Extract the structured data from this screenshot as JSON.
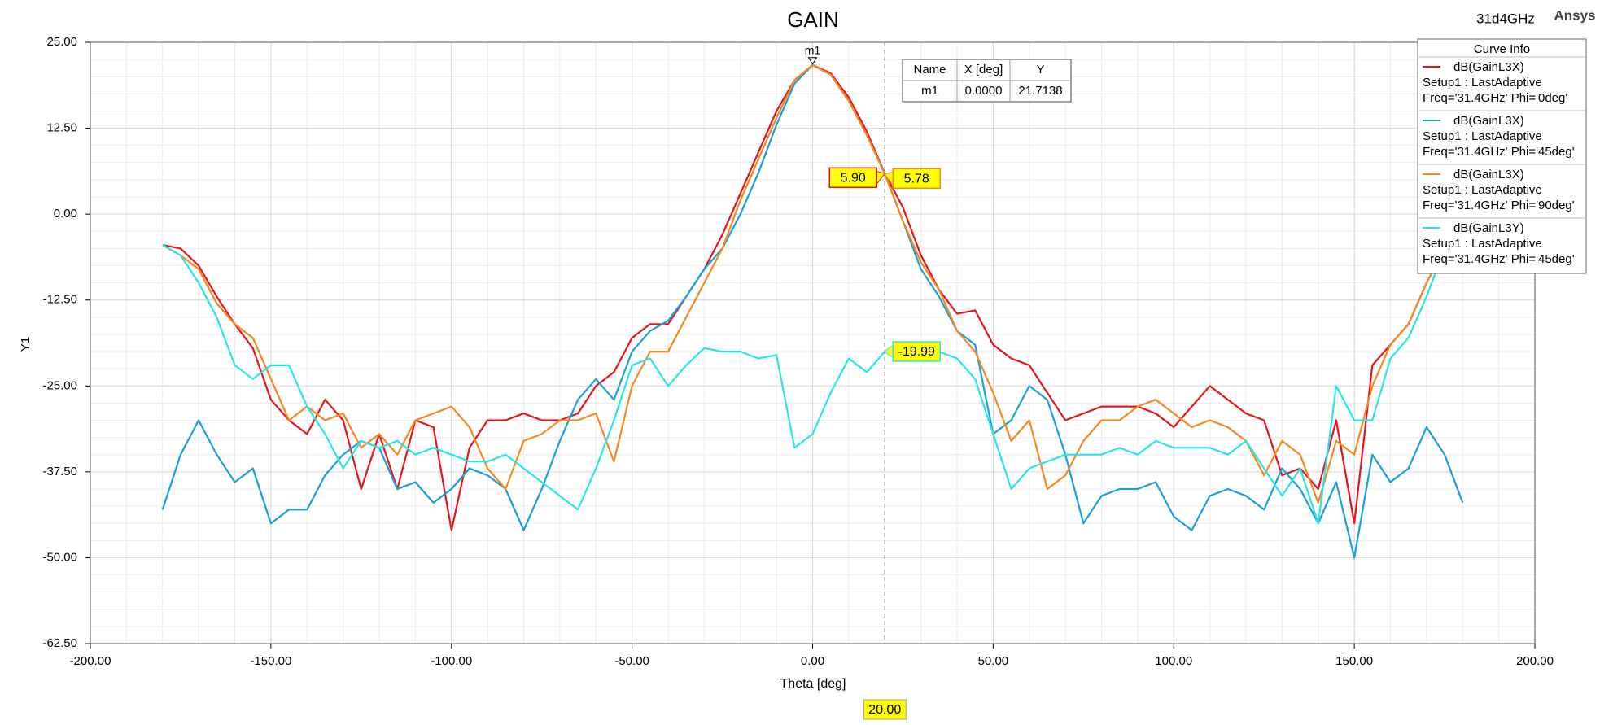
{
  "chart_data": {
    "type": "line",
    "title": "GAIN",
    "subtitle": "31d4GHz",
    "brand": "Ansys",
    "y_label": "Y1",
    "x_label": "Theta [deg]",
    "xlim": [
      -200,
      200
    ],
    "ylim": [
      -62.5,
      25
    ],
    "xticks": [
      {
        "value": -200,
        "label": "-200.00"
      },
      {
        "value": -150,
        "label": "-150.00"
      },
      {
        "value": -100,
        "label": "-100.00"
      },
      {
        "value": -50,
        "label": "-50.00"
      },
      {
        "value": 0,
        "label": "0.00"
      },
      {
        "value": 50,
        "label": "50.00"
      },
      {
        "value": 100,
        "label": "100.00"
      },
      {
        "value": 150,
        "label": "150.00"
      },
      {
        "value": 200,
        "label": "200.00"
      }
    ],
    "yticks": [
      {
        "value": 25,
        "label": "25.00"
      },
      {
        "value": 12.5,
        "label": "12.50"
      },
      {
        "value": 0,
        "label": "0.00"
      },
      {
        "value": -12.5,
        "label": "-12.50"
      },
      {
        "value": -25,
        "label": "-25.00"
      },
      {
        "value": -37.5,
        "label": "-37.50"
      },
      {
        "value": -50,
        "label": "-50.00"
      },
      {
        "value": -62.5,
        "label": "-62.50"
      }
    ],
    "grid": true,
    "minor_divisions": 5,
    "legend_title": "Curve Info",
    "x": [
      -180,
      -175,
      -170,
      -165,
      -160,
      -155,
      -150,
      -145,
      -140,
      -135,
      -130,
      -125,
      -120,
      -115,
      -110,
      -105,
      -100,
      -95,
      -90,
      -85,
      -80,
      -75,
      -70,
      -65,
      -60,
      -55,
      -50,
      -45,
      -40,
      -35,
      -30,
      -25,
      -20,
      -15,
      -10,
      -5,
      0,
      5,
      10,
      15,
      20,
      25,
      30,
      35,
      40,
      45,
      50,
      55,
      60,
      65,
      70,
      75,
      80,
      85,
      90,
      95,
      100,
      105,
      110,
      115,
      120,
      125,
      130,
      135,
      140,
      145,
      150,
      155,
      160,
      165,
      170,
      175,
      180
    ],
    "series": [
      {
        "name": "dB(GainL3X)",
        "setup": "Setup1 : LastAdaptive",
        "freq": "Freq='31.4GHz' Phi='0deg'",
        "color": "#e8141c",
        "values": [
          -4.5,
          -5,
          -7.5,
          -12,
          -16,
          -19.5,
          -27,
          -30,
          -32,
          -27,
          -30,
          -40,
          -32,
          -40,
          -30,
          -31,
          -46,
          -34,
          -30,
          -30,
          -29,
          -30,
          -30,
          -29,
          -25,
          -23,
          -18,
          -16,
          -16,
          -12,
          -8,
          -3,
          3,
          9,
          15,
          19.5,
          21.7,
          20.5,
          17,
          12,
          5.9,
          1,
          -6,
          -11,
          -14.5,
          -14,
          -19,
          -21,
          -22,
          -26,
          -30,
          -29,
          -28,
          -28,
          -28,
          -29,
          -31,
          -28,
          -25,
          -27,
          -29,
          -30,
          -38,
          -37,
          -40,
          -30,
          -45,
          -22,
          -19,
          -16,
          -10,
          -5,
          -3
        ]
      },
      {
        "name": "dB(GainL3X)",
        "setup": "Setup1 : LastAdaptive",
        "freq": "Freq='31.4GHz' Phi='45deg'",
        "color": "#1a9fdb",
        "values": [
          -43,
          -35,
          -30,
          -35,
          -39,
          -37,
          -45,
          -43,
          -43,
          -38,
          -35,
          -33,
          -34,
          -40,
          -39,
          -42,
          -40,
          -37,
          -38,
          -40,
          -46,
          -40,
          -33,
          -27,
          -24,
          -27,
          -20,
          -17,
          -15.5,
          -12,
          -8,
          -5,
          0,
          6,
          13,
          19,
          21.7,
          20.3,
          16.5,
          11.5,
          5.9,
          -1,
          -8,
          -12,
          -17,
          -19,
          -32,
          -30,
          -25,
          -27,
          -35,
          -45,
          -41,
          -40,
          -40,
          -39,
          -44,
          -46,
          -41,
          -40,
          -41,
          -43,
          -37,
          -40,
          -45,
          -39,
          -50,
          -35,
          -39,
          -37,
          -31,
          -35,
          -42
        ]
      },
      {
        "name": "dB(GainL3X)",
        "setup": "Setup1 : LastAdaptive",
        "freq": "Freq='31.4GHz' Phi='90deg'",
        "color": "#f5891f",
        "values": [
          -4.5,
          -6,
          -8,
          -13,
          -16,
          -18,
          -24,
          -30,
          -28,
          -30,
          -29,
          -34,
          -32,
          -35,
          -30,
          -29,
          -28,
          -31,
          -37,
          -40,
          -33,
          -32,
          -30,
          -30,
          -29,
          -36,
          -25,
          -20,
          -20,
          -15,
          -10,
          -5,
          2,
          8,
          14,
          19.5,
          21.7,
          20.3,
          16.5,
          11.5,
          5.78,
          -1,
          -7,
          -11,
          -17,
          -20,
          -26,
          -33,
          -30,
          -40,
          -38,
          -33,
          -30,
          -30,
          -28,
          -27,
          -29,
          -31,
          -30,
          -31,
          -33,
          -38,
          -33,
          -35,
          -42,
          -33,
          -35,
          -25,
          -19,
          -16,
          -10,
          -5,
          -3
        ]
      },
      {
        "name": "dB(GainL3Y)",
        "setup": "Setup1 : LastAdaptive",
        "freq": "Freq='31.4GHz' Phi='45deg'",
        "color": "#29e6e6",
        "values": [
          -4.5,
          -6,
          -10,
          -15,
          -22,
          -24,
          -22,
          -22,
          -28,
          -32,
          -37,
          -33,
          -34,
          -33,
          -35,
          -34,
          -35,
          -36,
          -36,
          -35,
          -37,
          -39,
          -41,
          -43,
          -37,
          -30,
          -22,
          -21,
          -25,
          -22,
          -19.5,
          -20,
          -20,
          -21,
          -20.5,
          -34,
          -32,
          -26,
          -21,
          -23,
          -19.99,
          -19.5,
          -21,
          -20,
          -21,
          -24,
          -32,
          -40,
          -37,
          -36,
          -35,
          -35,
          -35,
          -34,
          -35,
          -33,
          -34,
          -34,
          -34,
          -35,
          -33,
          -37,
          -41,
          -37,
          -45,
          -25,
          -30,
          -30,
          -21,
          -18,
          -12,
          -5,
          -3
        ]
      }
    ],
    "marker": {
      "name": "m1",
      "x": 0,
      "y": 21.7138
    },
    "marker_table": {
      "headers": [
        "Name",
        "X [deg]",
        "Y"
      ],
      "rows": [
        [
          "m1",
          "0.0000",
          "21.7138"
        ]
      ]
    },
    "cursor": {
      "x": {
        "value": 20,
        "label": "20.00"
      },
      "readouts": [
        {
          "value": 5.9,
          "label": "5.90",
          "color": "#e8141c"
        },
        {
          "value": 5.78,
          "label": "5.78",
          "color": "#f5891f"
        },
        {
          "value": -19.99,
          "label": "-19.99",
          "color": "#29e6e6"
        }
      ]
    }
  }
}
